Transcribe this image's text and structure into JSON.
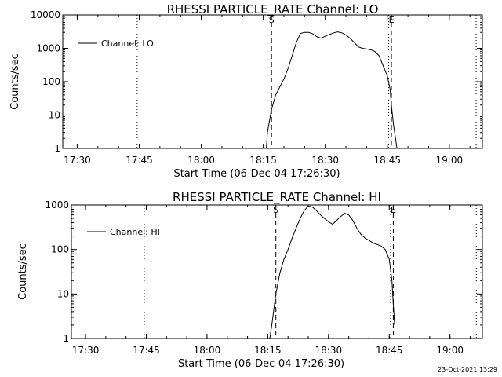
{
  "footer_timestamp": "23-Oct-2021 13:29",
  "chart_data": [
    {
      "type": "line",
      "title": "RHESSI PARTICLE_RATE Channel: LO",
      "xlabel": "Start Time (06-Dec-04 17:26:30)",
      "ylabel": "Counts/sec",
      "y_scale": "log",
      "ylim": [
        1,
        10000
      ],
      "y_ticks": [
        1,
        10,
        100,
        1000,
        10000
      ],
      "y_tick_labels": [
        "1",
        "10",
        "100",
        "1000",
        "10000"
      ],
      "xlim": [
        "17:26:30",
        "19:08:00"
      ],
      "x_ticks": [
        "17:30",
        "17:45",
        "18:00",
        "18:15",
        "18:30",
        "18:45",
        "19:00"
      ],
      "grid": false,
      "legend": {
        "placement": "top-left",
        "entries": [
          "Channel: LO"
        ]
      },
      "markers": [
        {
          "time": "18:17:00",
          "label": "S",
          "style": "dashed"
        },
        {
          "time": "18:46:00",
          "label": "E",
          "style": "dashed"
        },
        {
          "time": "17:44:30",
          "label": "",
          "style": "dotted"
        },
        {
          "time": "18:45:20",
          "label": "",
          "style": "dotted"
        },
        {
          "time": "19:06:30",
          "label": "",
          "style": "dotted"
        }
      ],
      "series": [
        {
          "name": "Channel: LO",
          "x": [
            "18:15:45",
            "18:16:00",
            "18:17:00",
            "18:18:00",
            "18:19:00",
            "18:20:00",
            "18:21:00",
            "18:22:00",
            "18:23:00",
            "18:24:00",
            "18:25:00",
            "18:26:00",
            "18:27:00",
            "18:28:00",
            "18:29:00",
            "18:30:00",
            "18:31:00",
            "18:32:00",
            "18:33:00",
            "18:34:00",
            "18:35:00",
            "18:36:00",
            "18:37:00",
            "18:38:00",
            "18:39:00",
            "18:40:00",
            "18:41:00",
            "18:42:00",
            "18:43:00",
            "18:44:00",
            "18:45:00",
            "18:45:40",
            "18:46:00",
            "18:46:30",
            "18:47:00",
            "18:47:20"
          ],
          "values": [
            1,
            3,
            15,
            40,
            70,
            120,
            250,
            600,
            1500,
            2800,
            3000,
            3000,
            2700,
            2200,
            2000,
            2300,
            2600,
            2900,
            3100,
            2900,
            2500,
            2000,
            1500,
            1100,
            1000,
            950,
            900,
            800,
            600,
            300,
            150,
            60,
            20,
            5,
            2,
            1
          ]
        }
      ]
    },
    {
      "type": "line",
      "title": "RHESSI PARTICLE_RATE Channel: HI",
      "xlabel": "Start Time (06-Dec-04 17:26:30)",
      "ylabel": "Counts/sec",
      "y_scale": "log",
      "ylim": [
        1,
        1000
      ],
      "y_ticks": [
        1,
        10,
        100,
        1000
      ],
      "y_tick_labels": [
        "1",
        "10",
        "100",
        "1000"
      ],
      "xlim": [
        "17:26:30",
        "19:08:00"
      ],
      "x_ticks": [
        "17:30",
        "17:45",
        "18:00",
        "18:15",
        "18:30",
        "18:45",
        "19:00"
      ],
      "grid": false,
      "legend": {
        "placement": "top-left",
        "entries": [
          "Channel: HI"
        ]
      },
      "markers": [
        {
          "time": "18:17:00",
          "label": "S",
          "style": "dashed"
        },
        {
          "time": "18:46:00",
          "label": "E",
          "style": "dashed"
        },
        {
          "time": "17:44:30",
          "label": "",
          "style": "dotted"
        },
        {
          "time": "18:45:20",
          "label": "",
          "style": "dotted"
        },
        {
          "time": "19:06:30",
          "label": "",
          "style": "dotted"
        }
      ],
      "series": [
        {
          "name": "Channel: HI",
          "x": [
            "18:15:30",
            "18:16:00",
            "18:17:00",
            "18:18:00",
            "18:19:00",
            "18:20:00",
            "18:21:00",
            "18:22:00",
            "18:23:00",
            "18:24:00",
            "18:25:00",
            "18:26:00",
            "18:27:00",
            "18:28:00",
            "18:29:00",
            "18:30:00",
            "18:31:00",
            "18:32:00",
            "18:33:00",
            "18:34:00",
            "18:35:00",
            "18:36:00",
            "18:37:00",
            "18:38:00",
            "18:39:00",
            "18:40:00",
            "18:41:00",
            "18:42:00",
            "18:43:00",
            "18:44:00",
            "18:45:00",
            "18:45:40",
            "18:46:00",
            "18:46:20"
          ],
          "values": [
            1,
            2,
            10,
            30,
            60,
            100,
            180,
            300,
            500,
            750,
            950,
            900,
            750,
            600,
            500,
            420,
            370,
            450,
            550,
            650,
            600,
            450,
            300,
            220,
            180,
            160,
            140,
            130,
            120,
            100,
            60,
            20,
            6,
            2
          ]
        }
      ]
    }
  ]
}
